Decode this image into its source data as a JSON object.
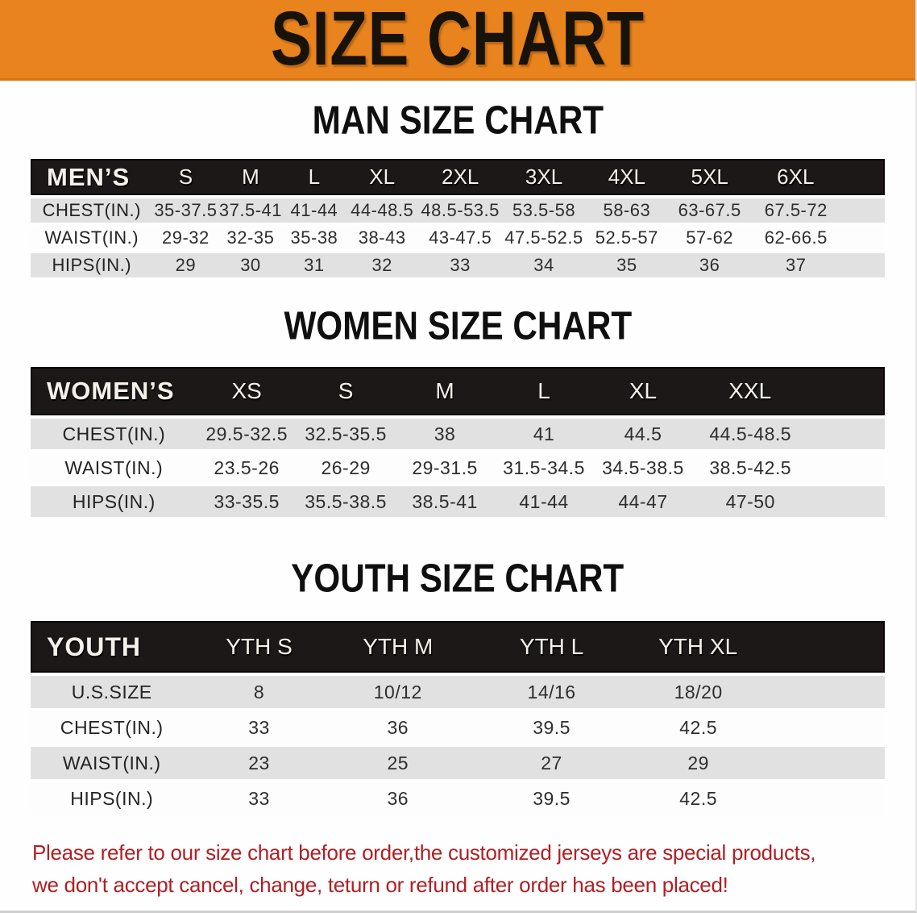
{
  "banner": {
    "title": "SIZE CHART",
    "bg_color": "#e8831e"
  },
  "colors": {
    "banner_orange": "#e8831e",
    "header_bar": "#1d1818",
    "row_gray": "#e1e1e1",
    "row_white": "#fdfdfd",
    "note_red": "#b01f24"
  },
  "sections": [
    {
      "title": "MAN SIZE CHART",
      "table": {
        "corner_label": "MEN’S",
        "columns": [
          "S",
          "M",
          "L",
          "XL",
          "2XL",
          "3XL",
          "4XL",
          "5XL",
          "6XL"
        ],
        "rows": [
          {
            "label": "CHEST(IN.)",
            "values": [
              "35-37.5",
              "37.5-41",
              "41-44",
              "44-48.5",
              "48.5-53.5",
              "53.5-58",
              "58-63",
              "63-67.5",
              "67.5-72"
            ]
          },
          {
            "label": "WAIST(IN.)",
            "values": [
              "29-32",
              "32-35",
              "35-38",
              "38-43",
              "43-47.5",
              "47.5-52.5",
              "52.5-57",
              "57-62",
              "62-66.5"
            ]
          },
          {
            "label": "HIPS(IN.)",
            "values": [
              "29",
              "30",
              "31",
              "32",
              "33",
              "34",
              "35",
              "36",
              "37"
            ]
          }
        ]
      }
    },
    {
      "title": "WOMEN SIZE CHART",
      "table": {
        "corner_label": "WOMEN’S",
        "columns": [
          "XS",
          "S",
          "M",
          "L",
          "XL",
          "XXL"
        ],
        "rows": [
          {
            "label": "CHEST(IN.)",
            "values": [
              "29.5-32.5",
              "32.5-35.5",
              "38",
              "41",
              "44.5",
              "44.5-48.5"
            ]
          },
          {
            "label": "WAIST(IN.)",
            "values": [
              "23.5-26",
              "26-29",
              "29-31.5",
              "31.5-34.5",
              "34.5-38.5",
              "38.5-42.5"
            ]
          },
          {
            "label": "HIPS(IN.)",
            "values": [
              "33-35.5",
              "35.5-38.5",
              "38.5-41",
              "41-44",
              "44-47",
              "47-50"
            ]
          }
        ]
      }
    },
    {
      "title": "YOUTH SIZE CHART",
      "table": {
        "corner_label": "YOUTH",
        "columns": [
          "YTH S",
          "YTH M",
          "YTH L",
          "YTH XL"
        ],
        "rows": [
          {
            "label": "U.S.SIZE",
            "values": [
              "8",
              "10/12",
              "14/16",
              "18/20"
            ]
          },
          {
            "label": "CHEST(IN.)",
            "values": [
              "33",
              "36",
              "39.5",
              "42.5"
            ]
          },
          {
            "label": "WAIST(IN.)",
            "values": [
              "23",
              "25",
              "27",
              "29"
            ]
          },
          {
            "label": "HIPS(IN.)",
            "values": [
              "33",
              "36",
              "39.5",
              "42.5"
            ]
          }
        ]
      }
    }
  ],
  "note": {
    "lines": [
      "Please refer to our size chart before order,the customized jerseys are special products,",
      "we don't accept cancel, change, teturn or refund after order has been placed!"
    ]
  }
}
